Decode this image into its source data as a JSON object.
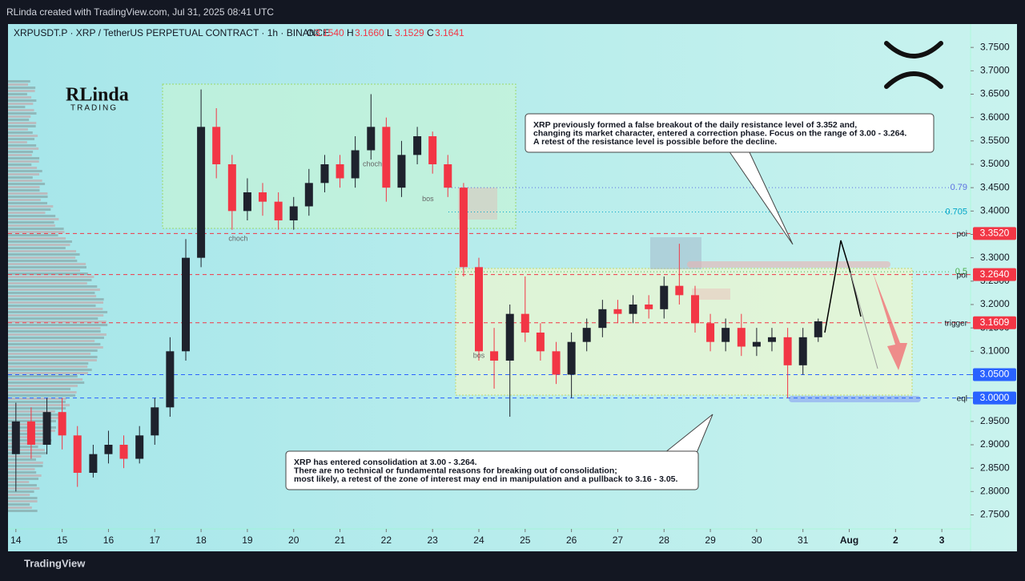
{
  "header": {
    "credit": "RLinda created with TradingView.com, Jul 31, 2025 08:41 UTC",
    "symbol": "XRPUSDT.P · XRP / TetherUS PERPETUAL CONTRACT · 1h · BINANCE",
    "ohlc": [
      {
        "label": "O",
        "value": "3.1540"
      },
      {
        "label": "H",
        "value": "3.1660"
      },
      {
        "label": "L",
        "value": "3.1529"
      },
      {
        "label": "C",
        "value": "3.1641"
      }
    ]
  },
  "logo": {
    "name": "RLinda",
    "sub": "TRADING"
  },
  "footer": {
    "brand": "TradingView"
  },
  "chart_data": {
    "type": "candlestick",
    "up_color": "#1e222d",
    "down_color": "#f23645",
    "x": [
      14,
      14.33,
      14.67,
      15,
      15.33,
      15.67,
      16,
      16.33,
      16.67,
      17,
      17.33,
      17.67,
      18,
      18.33,
      18.67,
      19,
      19.33,
      19.67,
      20,
      20.33,
      20.67,
      21,
      21.33,
      21.67,
      22,
      22.33,
      22.67,
      23,
      23.33,
      23.67,
      24,
      24.33,
      24.67,
      25,
      25.33,
      25.67,
      26,
      26.33,
      26.67,
      27,
      27.33,
      27.67,
      28,
      28.33,
      28.67,
      29,
      29.33,
      29.67,
      30,
      30.33,
      30.67,
      31,
      31.33
    ],
    "open": [
      2.88,
      2.95,
      2.9,
      2.97,
      2.92,
      2.84,
      2.88,
      2.9,
      2.87,
      2.92,
      2.98,
      3.1,
      3.3,
      3.58,
      3.5,
      3.4,
      3.44,
      3.42,
      3.38,
      3.41,
      3.46,
      3.5,
      3.47,
      3.53,
      3.58,
      3.45,
      3.52,
      3.56,
      3.5,
      3.45,
      3.28,
      3.1,
      3.08,
      3.18,
      3.14,
      3.1,
      3.05,
      3.12,
      3.15,
      3.19,
      3.18,
      3.2,
      3.19,
      3.24,
      3.22,
      3.16,
      3.12,
      3.15,
      3.11,
      3.12,
      3.13,
      3.07,
      3.13
    ],
    "high": [
      2.99,
      2.98,
      3.0,
      3.0,
      2.94,
      2.9,
      2.93,
      2.92,
      2.94,
      3.0,
      3.13,
      3.34,
      3.66,
      3.62,
      3.52,
      3.47,
      3.46,
      3.44,
      3.43,
      3.49,
      3.52,
      3.52,
      3.56,
      3.65,
      3.6,
      3.55,
      3.58,
      3.57,
      3.52,
      3.46,
      3.3,
      3.15,
      3.2,
      3.26,
      3.16,
      3.12,
      3.14,
      3.17,
      3.21,
      3.21,
      3.22,
      3.22,
      3.26,
      3.33,
      3.24,
      3.18,
      3.17,
      3.18,
      3.15,
      3.15,
      3.15,
      3.15,
      3.17
    ],
    "low": [
      2.8,
      2.87,
      2.88,
      2.89,
      2.81,
      2.83,
      2.86,
      2.85,
      2.86,
      2.9,
      2.96,
      3.08,
      3.28,
      3.47,
      3.36,
      3.38,
      3.39,
      3.36,
      3.36,
      3.39,
      3.44,
      3.45,
      3.45,
      3.51,
      3.42,
      3.43,
      3.5,
      3.48,
      3.43,
      3.26,
      3.08,
      3.02,
      2.96,
      3.12,
      3.08,
      3.03,
      3.0,
      3.1,
      3.13,
      3.16,
      3.16,
      3.17,
      3.17,
      3.2,
      3.14,
      3.1,
      3.1,
      3.09,
      3.09,
      3.1,
      3.0,
      3.05,
      3.12
    ],
    "close": [
      2.95,
      2.9,
      2.97,
      2.92,
      2.84,
      2.88,
      2.9,
      2.87,
      2.92,
      2.98,
      3.1,
      3.3,
      3.58,
      3.5,
      3.4,
      3.44,
      3.42,
      3.38,
      3.41,
      3.46,
      3.5,
      3.47,
      3.53,
      3.58,
      3.45,
      3.52,
      3.56,
      3.5,
      3.45,
      3.28,
      3.1,
      3.08,
      3.18,
      3.14,
      3.1,
      3.05,
      3.12,
      3.15,
      3.19,
      3.18,
      3.2,
      3.19,
      3.24,
      3.22,
      3.16,
      3.12,
      3.15,
      3.11,
      3.12,
      3.13,
      3.07,
      3.13,
      3.164
    ],
    "xlim": [
      13.83,
      34.62
    ],
    "xticks": [
      14,
      15,
      16,
      17,
      18,
      19,
      20,
      21,
      22,
      23,
      24,
      25,
      26,
      27,
      28,
      29,
      30,
      31,
      {
        "value": 32,
        "label": "Aug"
      },
      {
        "value": 33,
        "label": "2"
      },
      {
        "value": 34,
        "label": "3"
      }
    ],
    "ylim": [
      2.72,
      3.8
    ],
    "yticks": [
      {
        "value": 2.75,
        "label": "2.7500"
      },
      {
        "value": 2.8,
        "label": "2.8000"
      },
      {
        "value": 2.85,
        "label": "2.8500"
      },
      {
        "value": 2.9,
        "label": "2.9000"
      },
      {
        "value": 2.95,
        "label": "2.9500"
      },
      {
        "value": 3.0,
        "label": "3.0000"
      },
      {
        "value": 3.05,
        "label": "3.0500"
      },
      {
        "value": 3.1,
        "label": "3.1000"
      },
      {
        "value": 3.15,
        "label": "3.1500"
      },
      {
        "value": 3.2,
        "label": "3.2000"
      },
      {
        "value": 3.25,
        "label": "3.2500"
      },
      {
        "value": 3.3,
        "label": "3.3000"
      },
      {
        "value": 3.35,
        "label": "3.3500"
      },
      {
        "value": 3.4,
        "label": "3.4000"
      },
      {
        "value": 3.45,
        "label": "3.4500"
      },
      {
        "value": 3.5,
        "label": "3.5000"
      },
      {
        "value": 3.55,
        "label": "3.5500"
      },
      {
        "value": 3.6,
        "label": "3.6000"
      },
      {
        "value": 3.65,
        "label": "3.6500"
      },
      {
        "value": 3.7,
        "label": "3.7000"
      },
      {
        "value": 3.75,
        "label": "3.7500"
      }
    ],
    "levels": [
      {
        "value": 3.352,
        "label": "3.3520",
        "name": "poi",
        "color": "#f23645"
      },
      {
        "value": 3.264,
        "label": "3.2640",
        "name": "poi",
        "color": "#f23645"
      },
      {
        "value": 3.1609,
        "label": "3.1609",
        "name": "trigger",
        "color": "#f23645"
      },
      {
        "value": 3.05,
        "label": "3.0500",
        "color": "#2962ff"
      },
      {
        "value": 3.0,
        "label": "3.0000",
        "name": "eql",
        "color": "#2962ff"
      }
    ],
    "fib": [
      {
        "value": 3.45,
        "label": "0.79",
        "color": "#5b6ee1"
      },
      {
        "value": 3.398,
        "label": "0.705",
        "color": "#00a5c8"
      },
      {
        "value": 3.27,
        "label": "0.5",
        "color": "#4caf50"
      }
    ],
    "marks": [
      {
        "label": "choch",
        "x": 21.7,
        "y": 3.5
      },
      {
        "label": "bos",
        "x": 22.9,
        "y": 3.425
      },
      {
        "label": "choch",
        "x": 18.8,
        "y": 3.34
      },
      {
        "label": "bos",
        "x": 24.0,
        "y": 3.09
      }
    ],
    "notes": [
      [
        "XRP previously formed a false breakout of the daily resistance level of 3.352 and,",
        "changing its market character, entered a correction phase. Focus on the range of 3.00 - 3.264.",
        "A retest of the resistance level is possible before the decline."
      ],
      [
        "XRP has entered consolidation at 3.00 - 3.264.",
        "There are no technical or fundamental reasons for breaking out of consolidation;",
        "most likely, a retest of the zone of interest may end in manipulation and a pullback to 3.16 - 3.05."
      ]
    ]
  }
}
